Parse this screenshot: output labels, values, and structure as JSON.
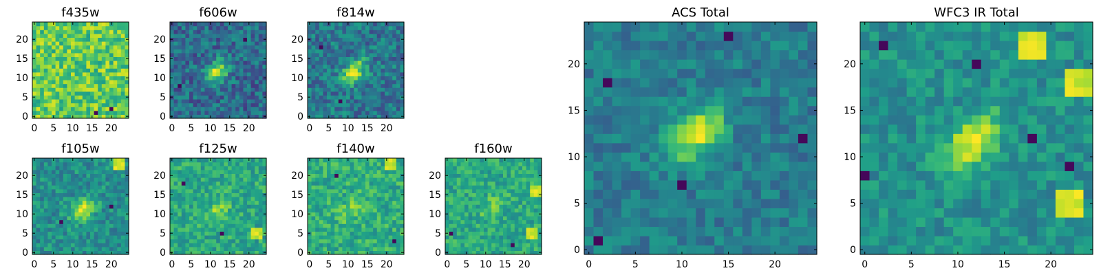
{
  "figure": {
    "colormap": "viridis",
    "colormap_stops": [
      "#440154",
      "#482878",
      "#3e4a89",
      "#31688e",
      "#26828e",
      "#1f9e89",
      "#35b779",
      "#6ece58",
      "#b5de2b",
      "#fde725"
    ]
  },
  "chart_data": [
    {
      "type": "heatmap",
      "title": "f435w",
      "grid_size": 25,
      "xlim": [
        0,
        24
      ],
      "ylim": [
        0,
        24
      ],
      "x_ticks": [
        0,
        5,
        10,
        15,
        20
      ],
      "y_ticks": [
        0,
        5,
        10,
        15,
        20
      ],
      "source_center": null,
      "source_peak": 0.0,
      "noise_level": 0.2,
      "background_level": 0.75,
      "hot_spots": [],
      "cold_spots": [
        [
          20,
          2
        ],
        [
          16,
          1
        ]
      ]
    },
    {
      "type": "heatmap",
      "title": "f606w",
      "grid_size": 25,
      "xlim": [
        0,
        24
      ],
      "ylim": [
        0,
        24
      ],
      "x_ticks": [
        0,
        5,
        10,
        15,
        20
      ],
      "y_ticks": [
        0,
        5,
        10,
        15,
        20
      ],
      "source_center": [
        11.5,
        11.5
      ],
      "source_peak": 0.95,
      "noise_level": 0.18,
      "background_level": 0.35,
      "hot_spots": [],
      "cold_spots": [
        [
          2,
          8
        ],
        [
          19,
          20
        ]
      ]
    },
    {
      "type": "heatmap",
      "title": "f814w",
      "grid_size": 25,
      "xlim": [
        0,
        24
      ],
      "ylim": [
        0,
        24
      ],
      "x_ticks": [
        0,
        5,
        10,
        15,
        20
      ],
      "y_ticks": [
        0,
        5,
        10,
        15,
        20
      ],
      "source_center": [
        11.5,
        11.5
      ],
      "source_peak": 0.95,
      "noise_level": 0.18,
      "background_level": 0.4,
      "hot_spots": [],
      "cold_spots": [
        [
          8,
          4
        ],
        [
          3,
          18
        ]
      ]
    },
    {
      "type": "heatmap",
      "title": "f105w",
      "grid_size": 25,
      "xlim": [
        0,
        24
      ],
      "ylim": [
        0,
        24
      ],
      "x_ticks": [
        0,
        5,
        10,
        15,
        20
      ],
      "y_ticks": [
        0,
        5,
        10,
        15,
        20
      ],
      "source_center": [
        12.5,
        11
      ],
      "source_peak": 0.92,
      "noise_level": 0.15,
      "background_level": 0.5,
      "hot_spots": [
        [
          22,
          23
        ]
      ],
      "cold_spots": [
        [
          7,
          8
        ],
        [
          20,
          12
        ]
      ]
    },
    {
      "type": "heatmap",
      "title": "f125w",
      "grid_size": 25,
      "xlim": [
        0,
        24
      ],
      "ylim": [
        0,
        24
      ],
      "x_ticks": [
        0,
        5,
        10,
        15,
        20
      ],
      "y_ticks": [
        0,
        5,
        10,
        15,
        20
      ],
      "source_center": [
        12,
        11
      ],
      "source_peak": 0.8,
      "noise_level": 0.15,
      "background_level": 0.6,
      "hot_spots": [
        [
          22,
          5
        ]
      ],
      "cold_spots": [
        [
          13,
          5
        ],
        [
          3,
          18
        ]
      ]
    },
    {
      "type": "heatmap",
      "title": "f140w",
      "grid_size": 25,
      "xlim": [
        0,
        24
      ],
      "ylim": [
        0,
        24
      ],
      "x_ticks": [
        0,
        5,
        10,
        15,
        20
      ],
      "y_ticks": [
        0,
        5,
        10,
        15,
        20
      ],
      "source_center": [
        11,
        11
      ],
      "source_peak": 0.8,
      "noise_level": 0.15,
      "background_level": 0.62,
      "hot_spots": [
        [
          21,
          23
        ]
      ],
      "cold_spots": [
        [
          22,
          3
        ],
        [
          7,
          20
        ]
      ]
    },
    {
      "type": "heatmap",
      "title": "f160w",
      "grid_size": 25,
      "xlim": [
        0,
        24
      ],
      "ylim": [
        0,
        24
      ],
      "x_ticks": [
        0,
        5,
        10,
        15,
        20
      ],
      "y_ticks": [
        0,
        5,
        10,
        15,
        20
      ],
      "source_center": [
        12,
        12
      ],
      "source_peak": 0.8,
      "noise_level": 0.14,
      "background_level": 0.6,
      "hot_spots": [
        [
          22,
          5
        ],
        [
          23,
          16
        ]
      ],
      "cold_spots": [
        [
          1,
          5
        ],
        [
          17,
          2
        ]
      ]
    },
    {
      "type": "heatmap",
      "title": "ACS Total",
      "grid_size": 25,
      "xlim": [
        0,
        24
      ],
      "ylim": [
        0,
        24
      ],
      "x_ticks": [
        0,
        5,
        10,
        15,
        20
      ],
      "y_ticks": [
        0,
        5,
        10,
        15,
        20
      ],
      "source_center": [
        11.5,
        12.5
      ],
      "source_peak": 0.95,
      "noise_level": 0.12,
      "background_level": 0.42,
      "hot_spots": [],
      "cold_spots": [
        [
          1,
          1
        ],
        [
          10,
          7
        ],
        [
          2,
          18
        ],
        [
          15,
          23
        ],
        [
          23,
          12
        ]
      ]
    },
    {
      "type": "heatmap",
      "title": "WFC3 IR Total",
      "grid_size": 25,
      "xlim": [
        0,
        24
      ],
      "ylim": [
        0,
        24
      ],
      "x_ticks": [
        0,
        5,
        10,
        15,
        20
      ],
      "y_ticks": [
        0,
        5,
        10,
        15,
        20
      ],
      "source_center": [
        11.5,
        11.5
      ],
      "source_peak": 0.95,
      "noise_level": 0.12,
      "background_level": 0.5,
      "hot_spots": [
        [
          23,
          18
        ],
        [
          22,
          5
        ],
        [
          18,
          22
        ]
      ],
      "cold_spots": [
        [
          2,
          22
        ],
        [
          12,
          20
        ],
        [
          22,
          9
        ],
        [
          0,
          8
        ],
        [
          18,
          12
        ]
      ]
    }
  ]
}
